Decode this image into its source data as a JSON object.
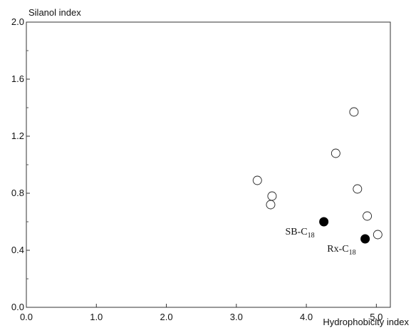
{
  "chart_data": {
    "type": "scatter",
    "xlabel": "Hydrophobicity index",
    "ylabel": "Silanol index",
    "xlim": [
      0,
      5.2
    ],
    "ylim": [
      0,
      2.0
    ],
    "x_ticks": [
      {
        "value": 0,
        "label": "0.0"
      },
      {
        "value": 1,
        "label": "1.0"
      },
      {
        "value": 2,
        "label": "2.0"
      },
      {
        "value": 3,
        "label": "3.0"
      },
      {
        "value": 4,
        "label": "4.0"
      },
      {
        "value": 5,
        "label": "5.0"
      }
    ],
    "y_ticks": [
      {
        "value": 0,
        "label": "0.0"
      },
      {
        "value": 0.4,
        "label": "0.4"
      },
      {
        "value": 0.8,
        "label": "0.8"
      },
      {
        "value": 1.2,
        "label": "1.2"
      },
      {
        "value": 1.6,
        "label": "1.6"
      },
      {
        "value": 2.0,
        "label": "2.0"
      }
    ],
    "y_minor_ticks": [
      0.2,
      0.6,
      1.0,
      1.4,
      1.8
    ],
    "grid": false,
    "series": [
      {
        "marker": "open-circle",
        "color": "#222222",
        "points": [
          {
            "x": 3.3,
            "y": 0.89
          },
          {
            "x": 3.51,
            "y": 0.78
          },
          {
            "x": 3.49,
            "y": 0.72
          },
          {
            "x": 4.42,
            "y": 1.08
          },
          {
            "x": 4.68,
            "y": 1.37
          },
          {
            "x": 4.73,
            "y": 0.83
          },
          {
            "x": 4.87,
            "y": 0.64
          },
          {
            "x": 5.02,
            "y": 0.51
          }
        ]
      },
      {
        "marker": "filled-circle",
        "color": "#000000",
        "points": [
          {
            "x": 4.25,
            "y": 0.6,
            "label": "SB-C",
            "label_sub": "18"
          },
          {
            "x": 4.84,
            "y": 0.48,
            "label": "Rx-C",
            "label_sub": "18"
          }
        ]
      }
    ]
  }
}
